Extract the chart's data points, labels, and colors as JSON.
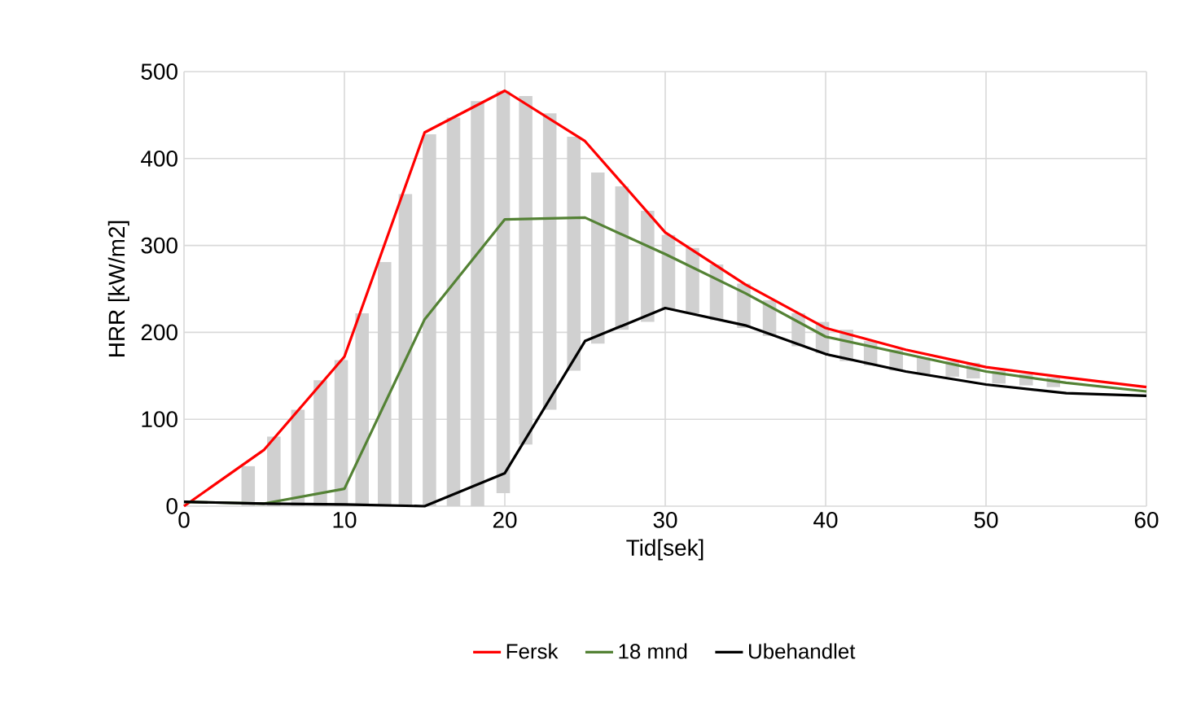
{
  "chart_data": {
    "type": "line",
    "xlabel": "Tid[sek]",
    "ylabel": "HRR [kW/m2]",
    "xlim": [
      0,
      60
    ],
    "ylim": [
      0,
      500
    ],
    "xticks": [
      0,
      10,
      20,
      30,
      40,
      50,
      60
    ],
    "yticks": [
      0,
      100,
      200,
      300,
      400,
      500
    ],
    "grid": true,
    "legend": "bottom",
    "marker": "none",
    "line_style": "solid",
    "series": [
      {
        "type": "bar",
        "color": "#d0d0d0",
        "x": [
          4.0,
          5.6,
          7.1,
          8.5,
          9.8,
          11.1,
          12.5,
          13.8,
          15.3,
          16.8,
          18.3,
          19.9,
          21.3,
          22.8,
          24.3,
          25.8,
          27.3,
          28.9,
          30.2,
          31.7,
          33.2,
          34.9,
          36.5,
          38.3,
          39.8,
          41.3,
          42.8,
          44.4,
          46.1,
          47.9,
          49.2,
          50.8,
          52.5,
          54.2
        ],
        "base": [
          0,
          0,
          0,
          0,
          0,
          0,
          0,
          0,
          0,
          0,
          0,
          15,
          71,
          111,
          156,
          187,
          203,
          212,
          227,
          222,
          214,
          205,
          196,
          184,
          176,
          167,
          162,
          156,
          152,
          149,
          147,
          141,
          139,
          137
        ],
        "values": [
          46,
          80,
          111,
          145,
          168,
          222,
          281,
          359,
          428,
          447,
          466,
          463,
          401,
          341,
          269,
          197,
          165,
          128,
          85,
          75,
          64,
          51,
          41,
          38,
          36,
          36,
          28,
          24,
          19,
          18,
          18,
          15,
          13,
          11
        ]
      },
      {
        "name": "Fersk",
        "color": "#ff0000",
        "x": [
          0,
          5,
          10,
          15,
          20,
          25,
          30,
          35,
          40,
          45,
          50,
          55,
          60
        ],
        "values": [
          0,
          65,
          172,
          430,
          478,
          420,
          315,
          255,
          205,
          180,
          160,
          148,
          137
        ]
      },
      {
        "name": "18 mnd",
        "color": "#548235",
        "x": [
          0,
          5,
          10,
          15,
          20,
          25,
          30,
          35,
          40,
          45,
          50,
          55,
          60
        ],
        "values": [
          5,
          3,
          20,
          215,
          330,
          332,
          290,
          245,
          195,
          175,
          155,
          142,
          132
        ]
      },
      {
        "name": "Ubehandlet",
        "color": "#000000",
        "x": [
          0,
          5,
          10,
          15,
          20,
          25,
          30,
          35,
          40,
          45,
          50,
          55,
          60
        ],
        "values": [
          5,
          3,
          2,
          0,
          38,
          190,
          228,
          208,
          175,
          155,
          140,
          130,
          127
        ]
      }
    ]
  }
}
